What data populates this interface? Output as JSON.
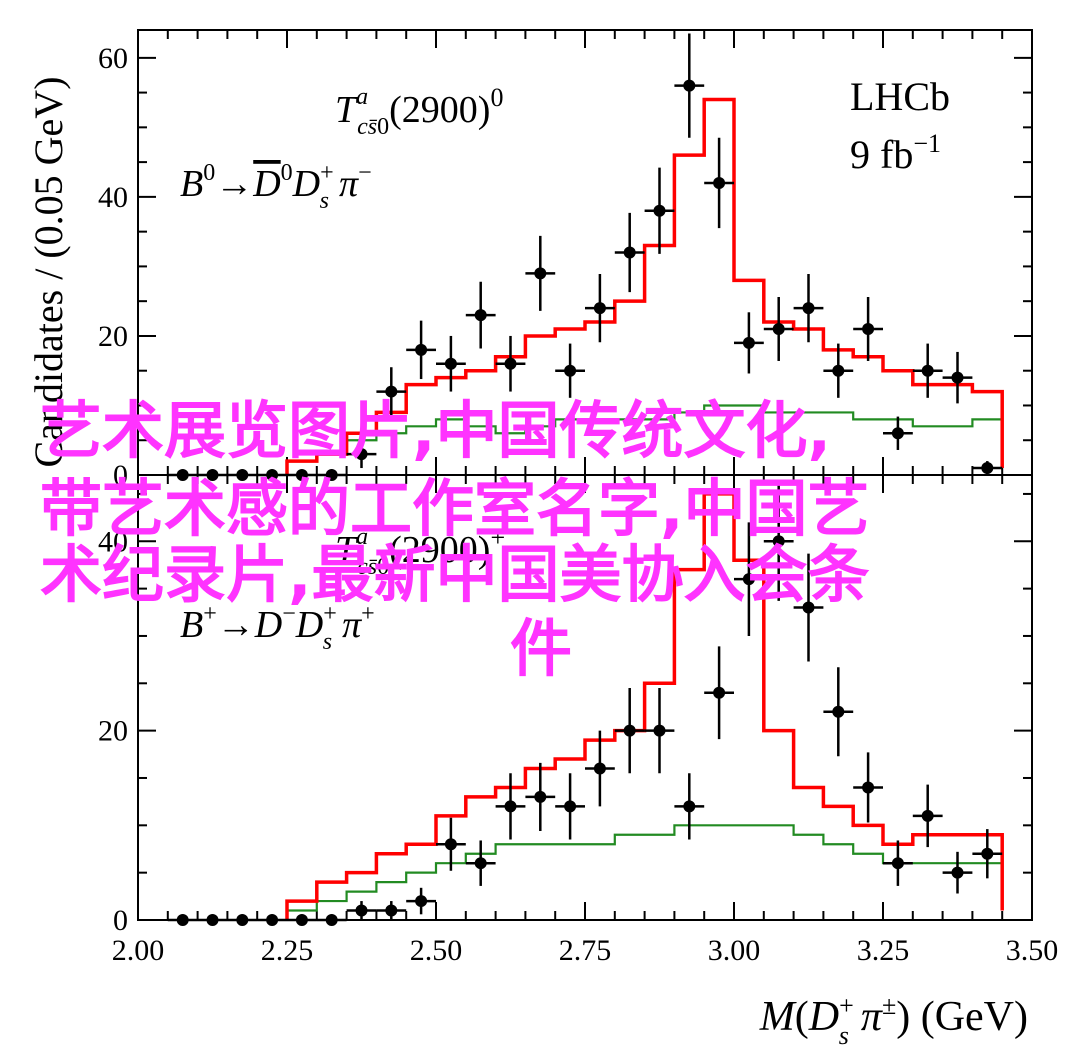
{
  "chart_data": [
    {
      "type": "scatter",
      "panel": "top",
      "annotations": [
        "T^a_{cs̄0}(2900)^0",
        "B^0→D̄^0 D_s^+ π^−",
        "LHCb",
        "9 fb^{−1}"
      ],
      "xlim": [
        2.0,
        3.5
      ],
      "ylim": [
        0,
        64
      ],
      "y_ticks": [
        "0",
        "20",
        "40",
        "60"
      ],
      "series": [
        {
          "name": "",
          "style": "points-with-errors",
          "x": [
            2.075,
            2.125,
            2.175,
            2.225,
            2.275,
            2.325,
            2.375,
            2.425,
            2.475,
            2.525,
            2.575,
            2.625,
            2.675,
            2.725,
            2.775,
            2.825,
            2.875,
            2.925,
            2.975,
            3.025,
            3.075,
            3.125,
            3.175,
            3.225,
            3.275,
            3.325,
            3.375,
            3.425
          ],
          "y": [
            0,
            0,
            0,
            0,
            0,
            0,
            3,
            12,
            18,
            16,
            23,
            16,
            29,
            15,
            24,
            32,
            38,
            56,
            42,
            19,
            21,
            24,
            15,
            21,
            6,
            15,
            14,
            1
          ],
          "yerr": [
            0,
            0,
            0,
            0,
            0,
            0,
            2,
            3.5,
            4.2,
            4,
            4.8,
            4,
            5.4,
            3.9,
            4.9,
            5.7,
            6.2,
            7.5,
            6.5,
            4.4,
            4.6,
            4.9,
            3.9,
            4.6,
            2.4,
            3.9,
            3.7,
            1
          ]
        },
        {
          "name": "",
          "style": "step",
          "color": "#ff0000",
          "edges": [
            2.25,
            2.3,
            2.35,
            2.4,
            2.45,
            2.5,
            2.55,
            2.6,
            2.65,
            2.7,
            2.75,
            2.8,
            2.85,
            2.9,
            2.95,
            3.0,
            3.05,
            3.1,
            3.15,
            3.2,
            3.25,
            3.3,
            3.35,
            3.4,
            3.45
          ],
          "values": [
            2,
            3,
            6,
            9,
            13,
            14,
            15,
            17,
            20,
            21,
            22,
            25,
            33,
            46,
            54,
            28,
            22,
            21,
            18,
            17,
            15,
            13,
            13,
            12,
            1
          ]
        },
        {
          "name": "",
          "style": "step",
          "color": "#228b22",
          "edges": [
            2.25,
            2.3,
            2.35,
            2.4,
            2.45,
            2.5,
            2.55,
            2.6,
            2.65,
            2.7,
            2.75,
            2.8,
            2.85,
            2.9,
            2.95,
            3.0,
            3.05,
            3.1,
            3.15,
            3.2,
            3.25,
            3.3,
            3.35,
            3.4,
            3.45
          ],
          "values": [
            2,
            3,
            5,
            6,
            7,
            8,
            7,
            6,
            7,
            8,
            8,
            8,
            8,
            9,
            10,
            10,
            9,
            9,
            9,
            8,
            8,
            7,
            7,
            8,
            1
          ]
        }
      ]
    },
    {
      "type": "scatter",
      "panel": "bottom",
      "annotations": [
        "T^a_{cs̄0}(2900)^+",
        "B^+→D^− D_s^+ π^+"
      ],
      "xlim": [
        2.0,
        3.5
      ],
      "ylim": [
        0,
        47
      ],
      "x_ticks": [
        "2.00",
        "2.25",
        "2.50",
        "2.75",
        "3.00",
        "3.25",
        "3.50"
      ],
      "y_ticks": [
        "0",
        "20",
        "40"
      ],
      "xlabel": "M(D_s^+ π^±) (GeV)",
      "ylabel": "Candidates / (0.05 GeV)",
      "series": [
        {
          "name": "",
          "style": "points-with-errors",
          "x": [
            2.075,
            2.125,
            2.175,
            2.225,
            2.275,
            2.325,
            2.375,
            2.425,
            2.475,
            2.525,
            2.575,
            2.625,
            2.675,
            2.725,
            2.775,
            2.825,
            2.875,
            2.925,
            2.975,
            3.025,
            3.075,
            3.125,
            3.175,
            3.225,
            3.275,
            3.325,
            3.375,
            3.425
          ],
          "y": [
            0,
            0,
            0,
            0,
            0,
            0,
            1,
            1,
            2,
            8,
            6,
            12,
            13,
            12,
            16,
            20,
            20,
            12,
            24,
            36,
            40,
            33,
            22,
            14,
            6,
            11,
            5,
            7
          ],
          "yerr": [
            0,
            0,
            0,
            0,
            0,
            0,
            1,
            1,
            1.4,
            2.8,
            2.4,
            3.5,
            3.6,
            3.5,
            4,
            4.5,
            4.5,
            3.5,
            4.9,
            6,
            6.3,
            5.7,
            4.7,
            3.7,
            2.4,
            3.3,
            2.2,
            2.6
          ]
        },
        {
          "name": "",
          "style": "step",
          "color": "#ff0000",
          "edges": [
            2.25,
            2.3,
            2.35,
            2.4,
            2.45,
            2.5,
            2.55,
            2.6,
            2.65,
            2.7,
            2.75,
            2.8,
            2.85,
            2.9,
            2.95,
            3.0,
            3.05,
            3.1,
            3.15,
            3.2,
            3.25,
            3.3,
            3.35,
            3.4,
            3.45
          ],
          "values": [
            2,
            4,
            5,
            7,
            8,
            11,
            13,
            14,
            16,
            17,
            19,
            20,
            25,
            37,
            45,
            38,
            20,
            14,
            12,
            10,
            8,
            9,
            9,
            9,
            1
          ]
        },
        {
          "name": "",
          "style": "step",
          "color": "#228b22",
          "edges": [
            2.25,
            2.3,
            2.35,
            2.4,
            2.45,
            2.5,
            2.55,
            2.6,
            2.65,
            2.7,
            2.75,
            2.8,
            2.85,
            2.9,
            2.95,
            3.0,
            3.05,
            3.1,
            3.15,
            3.2,
            3.25,
            3.3,
            3.35,
            3.4,
            3.45
          ],
          "values": [
            1,
            2,
            3,
            4,
            5,
            6,
            7,
            8,
            8,
            8,
            8,
            9,
            9,
            10,
            10,
            10,
            10,
            9,
            8,
            7,
            6,
            6,
            6,
            6,
            1
          ]
        }
      ]
    }
  ],
  "overlay": {
    "lines": [
      "艺术展览图片,中国传统文化,",
      "带艺术感的工作室名字,中国艺",
      "术纪录片,最新中国美协入会条",
      "件"
    ],
    "color": "#ff33ff"
  }
}
